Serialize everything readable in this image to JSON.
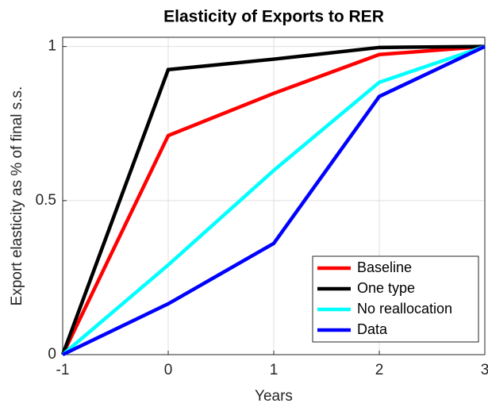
{
  "chart_data": {
    "type": "line",
    "title": "Elasticity of Exports to RER",
    "xlabel": "Years",
    "ylabel": "Export elasticity as % of final s.s.",
    "x": [
      -1,
      0,
      1,
      2,
      3
    ],
    "series": [
      {
        "name": "Baseline",
        "color": "#ff0000",
        "values": [
          0,
          0.711,
          0.848,
          0.974,
          1
        ]
      },
      {
        "name": "One type",
        "color": "#000000",
        "values": [
          0,
          0.925,
          0.959,
          0.997,
          1
        ]
      },
      {
        "name": "No reallocation",
        "color": "#00ffff",
        "values": [
          0,
          0.291,
          0.598,
          0.884,
          1
        ]
      },
      {
        "name": "Data",
        "color": "#0000ff",
        "values": [
          0,
          0.165,
          0.361,
          0.838,
          1
        ]
      }
    ],
    "xlim": [
      -1,
      3
    ],
    "xticks": [
      -1,
      0,
      1,
      2,
      3
    ],
    "ylim": [
      0,
      1.03
    ],
    "yticks": [
      0,
      0.5,
      1
    ],
    "grid": true,
    "legend": "lower right"
  }
}
